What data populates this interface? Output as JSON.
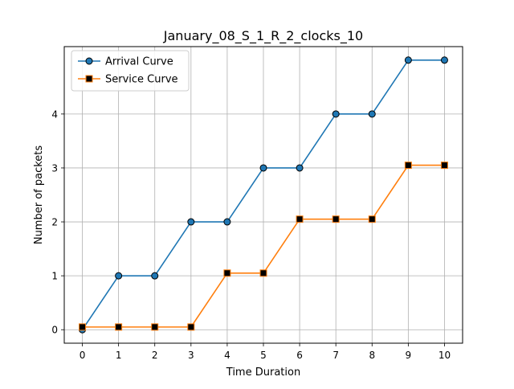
{
  "chart_data": {
    "type": "line",
    "title": "January_08_S_1_R_2_clocks_10",
    "xlabel": "Time Duration",
    "ylabel": "Number of packets",
    "x": [
      0,
      1,
      2,
      3,
      4,
      5,
      6,
      7,
      8,
      9,
      10
    ],
    "x_ticks": [
      0,
      1,
      2,
      3,
      4,
      5,
      6,
      7,
      8,
      9,
      10
    ],
    "y_ticks": [
      0,
      1,
      2,
      3,
      4
    ],
    "xlim": [
      -0.5,
      10.5
    ],
    "ylim": [
      -0.25,
      5.25
    ],
    "grid": true,
    "legend_position": "top-left",
    "series": [
      {
        "name": "Arrival Curve",
        "color": "#1f77b4",
        "marker": "circle",
        "values": [
          0,
          1,
          1,
          2,
          2,
          3,
          3,
          4,
          4,
          5,
          5
        ]
      },
      {
        "name": "Service Curve",
        "color": "#ff7f0e",
        "marker": "square",
        "values": [
          0.05,
          0.05,
          0.05,
          0.05,
          1.05,
          1.05,
          2.05,
          2.05,
          2.05,
          3.05,
          3.05
        ]
      }
    ]
  }
}
